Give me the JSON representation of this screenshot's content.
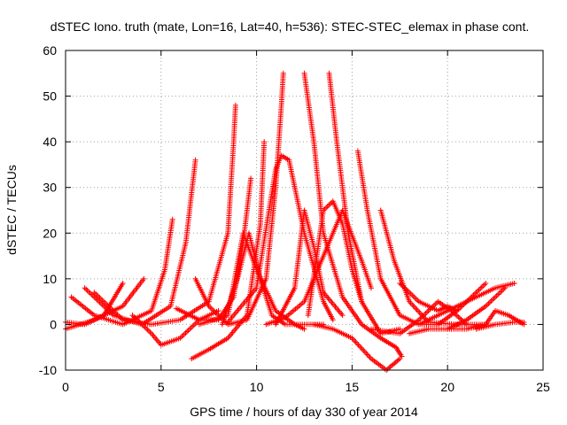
{
  "chart_data": {
    "type": "scatter",
    "title": "dSTEC Iono. truth (mate, Lon=16, Lat=40, h=536): STEC-STEC_elemax in phase cont.",
    "xlabel": "GPS time / hours of day 330 of year 2014",
    "ylabel": "dSTEC  / TECUs",
    "xlim": [
      0,
      25
    ],
    "ylim": [
      -10,
      60
    ],
    "xticks": [
      0,
      5,
      10,
      15,
      20,
      25
    ],
    "yticks": [
      -10,
      0,
      10,
      20,
      30,
      40,
      50,
      60
    ],
    "grid": true,
    "legend": "none",
    "marker": "+",
    "color": "#ff0000",
    "series": [
      {
        "x": [
          0.0,
          1.0,
          2.0,
          3.0
        ],
        "y": [
          0.5,
          0.0,
          2.0,
          9.0
        ]
      },
      {
        "x": [
          0.0,
          1.5,
          3.0,
          4.1
        ],
        "y": [
          -1.0,
          1.0,
          4.0,
          10.0
        ]
      },
      {
        "x": [
          0.3,
          1.5,
          3.0,
          4.5,
          5.2,
          5.6
        ],
        "y": [
          6.0,
          2.0,
          0.0,
          3.0,
          12.0,
          23.0
        ]
      },
      {
        "x": [
          1.0,
          2.5,
          4.0,
          5.5,
          6.3,
          6.8
        ],
        "y": [
          8.0,
          2.0,
          0.0,
          4.0,
          18.0,
          36.0
        ]
      },
      {
        "x": [
          1.5,
          3.0,
          4.5,
          6.0,
          7.5,
          8.5,
          8.8,
          8.9
        ],
        "y": [
          7.0,
          1.0,
          0.0,
          1.0,
          5.0,
          20.0,
          40.0,
          48.0
        ]
      },
      {
        "x": [
          3.5,
          4.5,
          5.0,
          6.0,
          7.0,
          8.0
        ],
        "y": [
          2.0,
          -2.0,
          -4.5,
          -3.0,
          1.0,
          3.0
        ]
      },
      {
        "x": [
          5.8,
          7.0,
          8.0,
          8.8,
          9.3,
          9.7
        ],
        "y": [
          3.5,
          1.0,
          1.0,
          6.0,
          18.0,
          32.0
        ]
      },
      {
        "x": [
          6.6,
          7.5,
          8.5,
          9.5,
          10.2,
          10.4
        ],
        "y": [
          -7.5,
          -5.5,
          -3.0,
          2.0,
          22.0,
          40.0
        ]
      },
      {
        "x": [
          6.8,
          7.5,
          8.5,
          9.5,
          10.5,
          11.0,
          11.3,
          11.4
        ],
        "y": [
          10.0,
          4.0,
          0.0,
          1.0,
          10.0,
          30.0,
          48.0,
          55.0
        ]
      },
      {
        "x": [
          7.0,
          8.5,
          9.3,
          10.0,
          11.0,
          12.0,
          12.5
        ],
        "y": [
          0.0,
          2.0,
          20.0,
          12.0,
          3.0,
          0.0,
          -1.0
        ]
      },
      {
        "x": [
          8.2,
          9.0,
          9.6,
          10.2,
          10.8,
          11.5,
          12.5,
          13.5
        ],
        "y": [
          0.0,
          10.0,
          20.0,
          10.0,
          2.0,
          0.0,
          0.0,
          0.0
        ]
      },
      {
        "x": [
          8.5,
          10.0,
          11.0,
          11.3,
          11.7,
          12.5,
          13.5,
          14.0
        ],
        "y": [
          0.5,
          8.0,
          34.0,
          37.0,
          36.0,
          20.0,
          5.0,
          1.0
        ]
      },
      {
        "x": [
          10.5,
          11.5,
          12.5,
          13.5,
          14.5,
          15.5,
          16.0
        ],
        "y": [
          0.0,
          1.5,
          5.0,
          15.0,
          25.0,
          14.0,
          8.0
        ]
      },
      {
        "x": [
          11.0,
          12.0,
          12.5,
          13.0,
          13.5,
          14.5
        ],
        "y": [
          0.0,
          8.0,
          25.0,
          17.0,
          7.0,
          2.0
        ]
      },
      {
        "x": [
          12.5,
          13.0,
          13.5,
          14.5,
          15.5,
          16.5,
          17.3,
          17.6
        ],
        "y": [
          55.0,
          40.0,
          20.0,
          6.0,
          0.0,
          -3.0,
          -5.0,
          -7.0
        ]
      },
      {
        "x": [
          12.7,
          13.5,
          14.0,
          14.5,
          15.0,
          15.5
        ],
        "y": [
          2.0,
          25.0,
          27.0,
          22.0,
          12.0,
          5.0
        ]
      },
      {
        "x": [
          13.8,
          14.2,
          14.8,
          15.5,
          16.5,
          17.5
        ],
        "y": [
          55.0,
          40.0,
          20.0,
          5.0,
          -2.0,
          -1.0
        ]
      },
      {
        "x": [
          13.0,
          14.0,
          15.0,
          16.0,
          16.8,
          17.5
        ],
        "y": [
          0.0,
          -1.0,
          -3.0,
          -7.5,
          -10.0,
          -7.5
        ]
      },
      {
        "x": [
          15.3,
          15.8,
          16.5,
          17.5,
          18.5,
          19.5
        ],
        "y": [
          38.0,
          25.0,
          10.0,
          2.0,
          0.0,
          0.0
        ]
      },
      {
        "x": [
          16.5,
          17.2,
          18.0,
          19.0,
          20.5,
          22.0
        ],
        "y": [
          25.0,
          14.0,
          5.0,
          0.5,
          0.0,
          0.0
        ]
      },
      {
        "x": [
          16.0,
          17.5,
          18.5,
          19.5,
          20.2,
          21.0
        ],
        "y": [
          -1.0,
          -2.0,
          1.0,
          5.0,
          3.0,
          0.0
        ]
      },
      {
        "x": [
          18.0,
          19.0,
          20.0,
          21.0,
          22.0,
          23.0
        ],
        "y": [
          -2.0,
          -1.0,
          -1.0,
          1.0,
          4.0,
          8.0
        ]
      },
      {
        "x": [
          18.5,
          19.5,
          20.5,
          21.5,
          22.5,
          23.5
        ],
        "y": [
          0.0,
          2.0,
          4.0,
          6.0,
          8.0,
          9.0
        ]
      },
      {
        "x": [
          17.5,
          18.5,
          19.5,
          20.0,
          20.5
        ],
        "y": [
          9.0,
          5.0,
          3.0,
          4.0,
          3.0
        ]
      },
      {
        "x": [
          19.5,
          20.5,
          21.5,
          22.0
        ],
        "y": [
          0.0,
          3.0,
          7.0,
          9.0
        ]
      },
      {
        "x": [
          20.0,
          21.0,
          22.0,
          22.5,
          23.2,
          24.0
        ],
        "y": [
          -1.0,
          -1.0,
          0.0,
          3.0,
          2.0,
          0.0
        ]
      },
      {
        "x": [
          21.5,
          22.5,
          23.5,
          24.0
        ],
        "y": [
          -1.0,
          0.0,
          0.5,
          0.5
        ]
      }
    ]
  }
}
